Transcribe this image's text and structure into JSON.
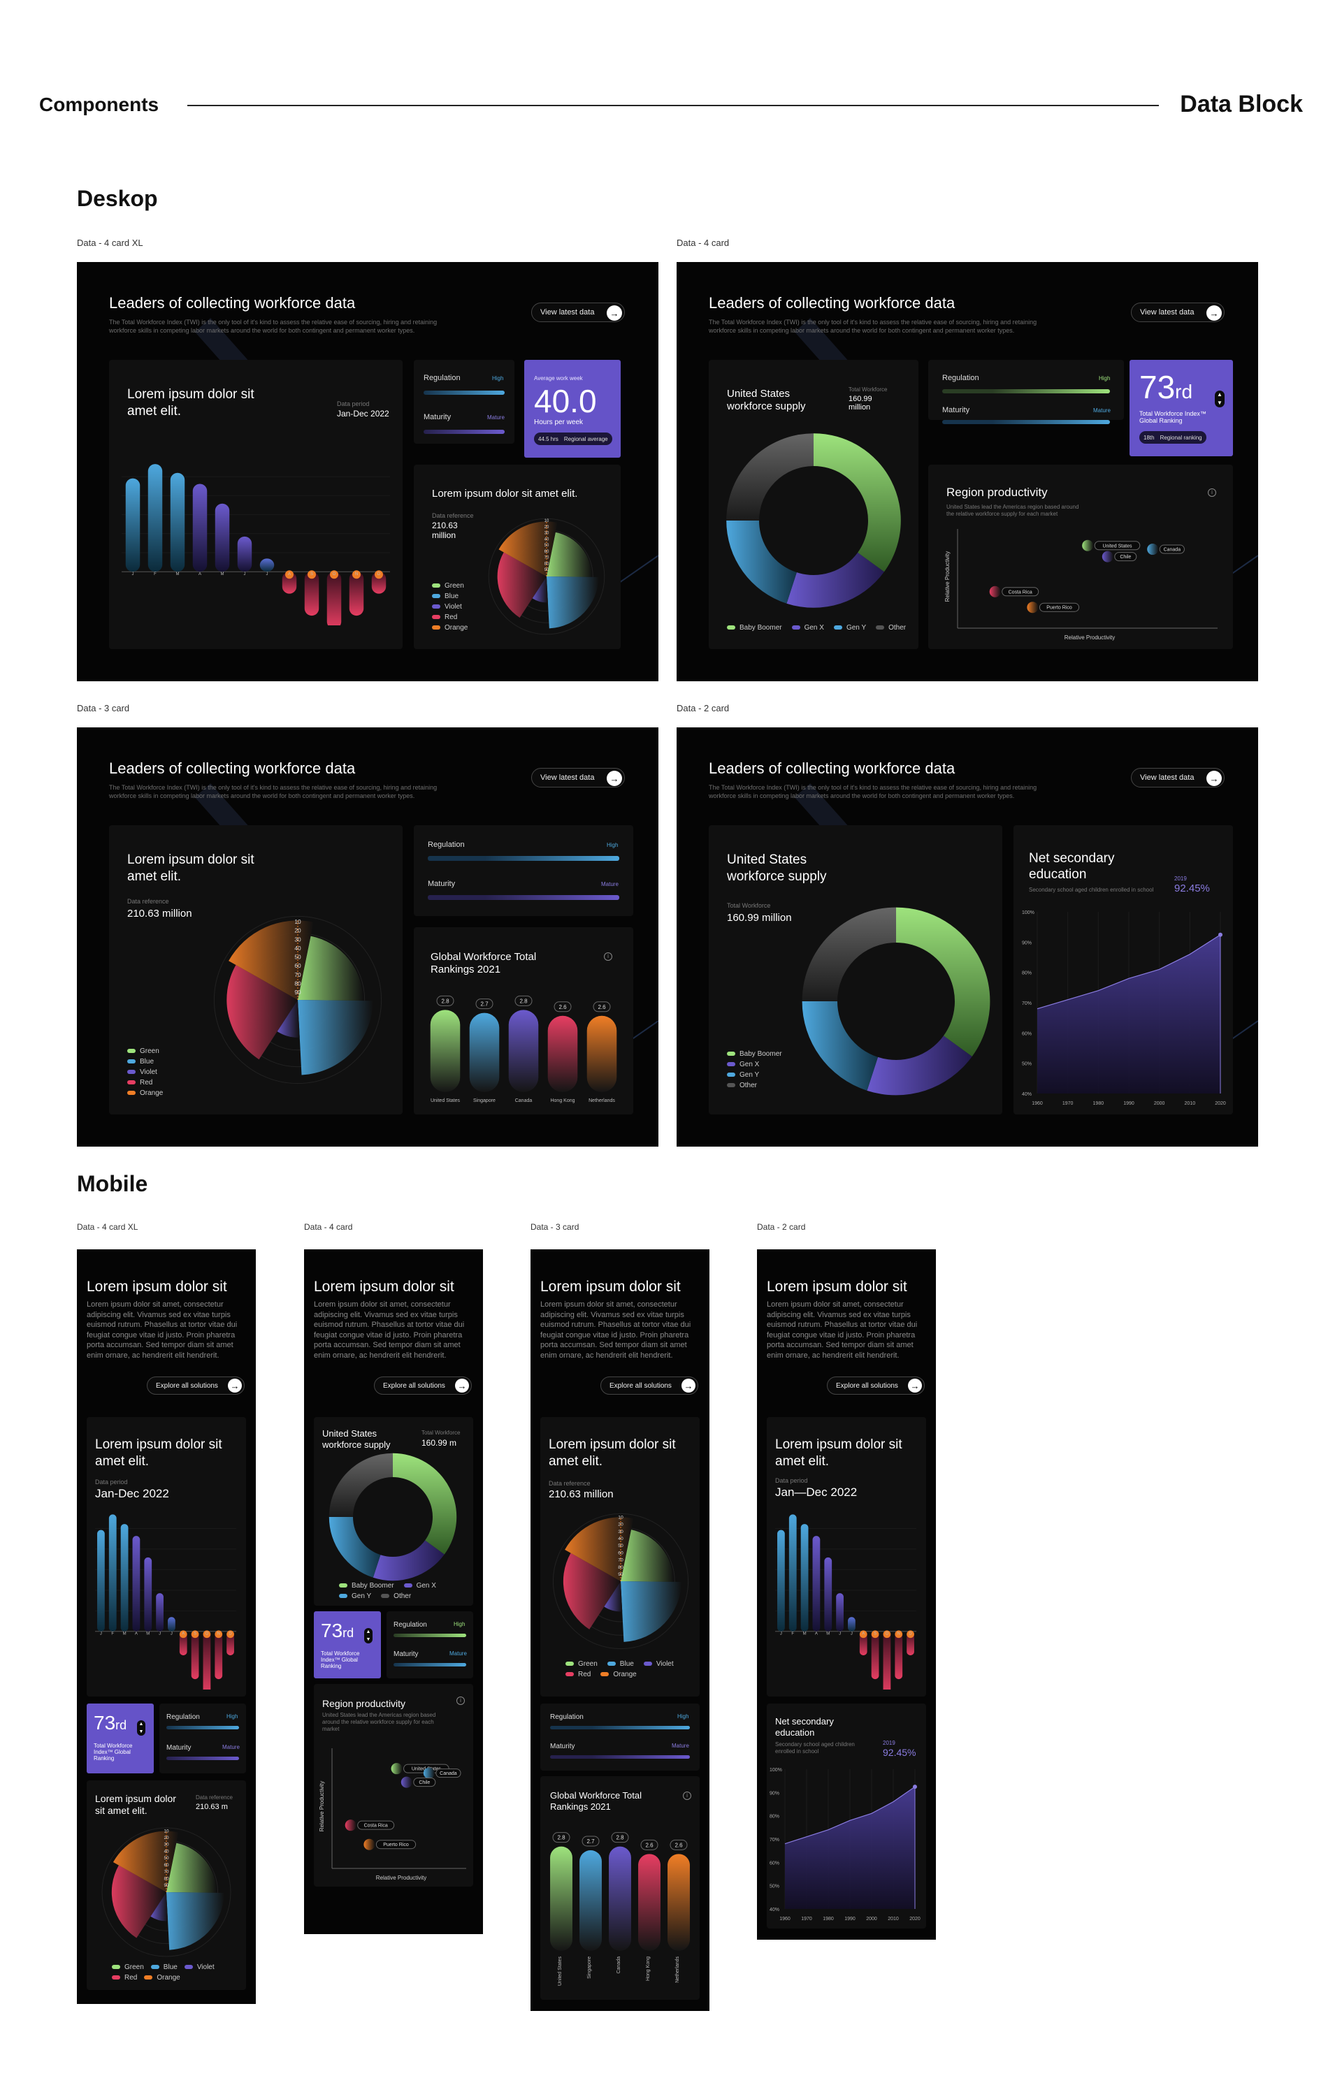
{
  "header": {
    "left": "Components",
    "right": "Data Block"
  },
  "sections": {
    "desktop": "Deskop",
    "mobile": "Mobile"
  },
  "labels": {
    "d_xl": "Data - 4 card XL",
    "d_4": "Data - 4 card",
    "d_3": "Data - 3 card",
    "d_2": "Data - 2 card",
    "m_xl": "Data - 4 card XL",
    "m_4": "Data - 4 card",
    "m_3": "Data - 3 card",
    "m_2": "Data - 2 card"
  },
  "common": {
    "title": "Leaders of collecting workforce data",
    "subtitle": "The Total Workforce Index (TWI) is the only tool of it's kind to assess the relative ease of sourcing, hiring and retaining workforce skills in competing labor markets around the world for both contingent and permanent worker types.",
    "view_btn": "View latest data",
    "lorem_panel": "Lorem ipsum dolor sit amet elit.",
    "data_period_label": "Data period",
    "data_period": "Jan-Dec 2022",
    "data_period_m": "Jan—Dec 2022",
    "data_ref_label": "Data reference",
    "data_ref": "210.63 million",
    "data_ref_short": "210.63 m",
    "regulation": "Regulation",
    "maturity": "Maturity",
    "high": "High",
    "mature": "Mature",
    "us_supply": "United States workforce supply",
    "total_workforce": "Total Workforce",
    "us_value": "160.99 million",
    "us_value_short": "160.99 m",
    "rank": "73",
    "rank_suffix": "rd",
    "rank_text": "Total Workforce Index™ Global Ranking",
    "rank_pill_a": "18th",
    "rank_pill_b": "Regional ranking",
    "avg_label": "Average work week",
    "avg_value": "40.0",
    "avg_unit": "Hours per week",
    "avg_pill_a": "44.5 hrs",
    "avg_pill_b": "Regional average",
    "region_title": "Region productivity",
    "region_sub": "United States lead the Americas region based around the relative workforce supply for each market",
    "rel_prod": "Relative Productivity",
    "global_title": "Global Workforce Total Rankings 2021",
    "net_title": "Net secondary education",
    "net_sub": "Secondary school aged children enrolled in school",
    "net_year": "2019",
    "net_value": "92.45%",
    "mobile_title": "Lorem ipsum dolor sit",
    "mobile_text": "Lorem ipsum dolor sit amet, consectetur adipiscing elit. Vivamus sed ex vitae turpis euismod rutrum. Phasellus at tortor vitae dui feugiat congue vitae id justo. Proin pharetra porta accumsan. Sed tempor diam sit amet enim ornare, ac hendrerit elit hendrerit.",
    "explore_btn": "Explore all solutions"
  },
  "chart_data": [
    {
      "type": "bar",
      "id": "monthly-bars",
      "categories": [
        "J",
        "F",
        "M",
        "A",
        "M",
        "J",
        "J",
        "A",
        "S",
        "O",
        "N",
        "D"
      ],
      "values": [
        85,
        98,
        90,
        80,
        62,
        32,
        12,
        -20,
        -40,
        -52,
        -40,
        -20
      ]
    },
    {
      "type": "pie",
      "id": "polar-pie",
      "categories": [
        "Green",
        "Blue",
        "Violet",
        "Red",
        "Orange"
      ],
      "values": [
        22,
        24,
        10,
        24,
        20
      ],
      "colors": [
        "#9ee37d",
        "#4ea8de",
        "#6b5acd",
        "#e63e62",
        "#f07e26"
      ],
      "ticks": [
        "90",
        "80",
        "70",
        "60",
        "50",
        "40",
        "30",
        "20",
        "10"
      ]
    },
    {
      "type": "pie",
      "id": "workforce-donut",
      "categories": [
        "Baby Boomer",
        "Gen X",
        "Gen Y",
        "Other"
      ],
      "values": [
        35,
        20,
        20,
        25
      ],
      "colors": [
        "#9ee37d",
        "#6b5acd",
        "#4ea8de",
        "#555555"
      ]
    },
    {
      "type": "bar",
      "id": "global-rankings",
      "categories": [
        "United States",
        "Singapore",
        "Canada",
        "Hong Kong",
        "Netherlands"
      ],
      "values": [
        2.8,
        2.7,
        2.8,
        2.6,
        2.6
      ],
      "colors": [
        "#9ee37d",
        "#4ea8de",
        "#6b5acd",
        "#e63e62",
        "#f07e26"
      ]
    },
    {
      "type": "area",
      "id": "net-secondary",
      "x": [
        "1960",
        "1970",
        "1980",
        "1990",
        "2000",
        "2010",
        "2020"
      ],
      "y_ticks": [
        "100%",
        "90%",
        "80%",
        "70%",
        "60%",
        "50%",
        "40%"
      ],
      "values": [
        68,
        71,
        74,
        78,
        81,
        86,
        92.45
      ]
    },
    {
      "type": "scatter",
      "id": "region-productivity",
      "xlabel": "Relative Productivity",
      "ylabel": "Relative Productivity",
      "points": [
        "United States",
        "Canada",
        "Chile",
        "Costa Rica",
        "Puerto Rico"
      ]
    }
  ]
}
